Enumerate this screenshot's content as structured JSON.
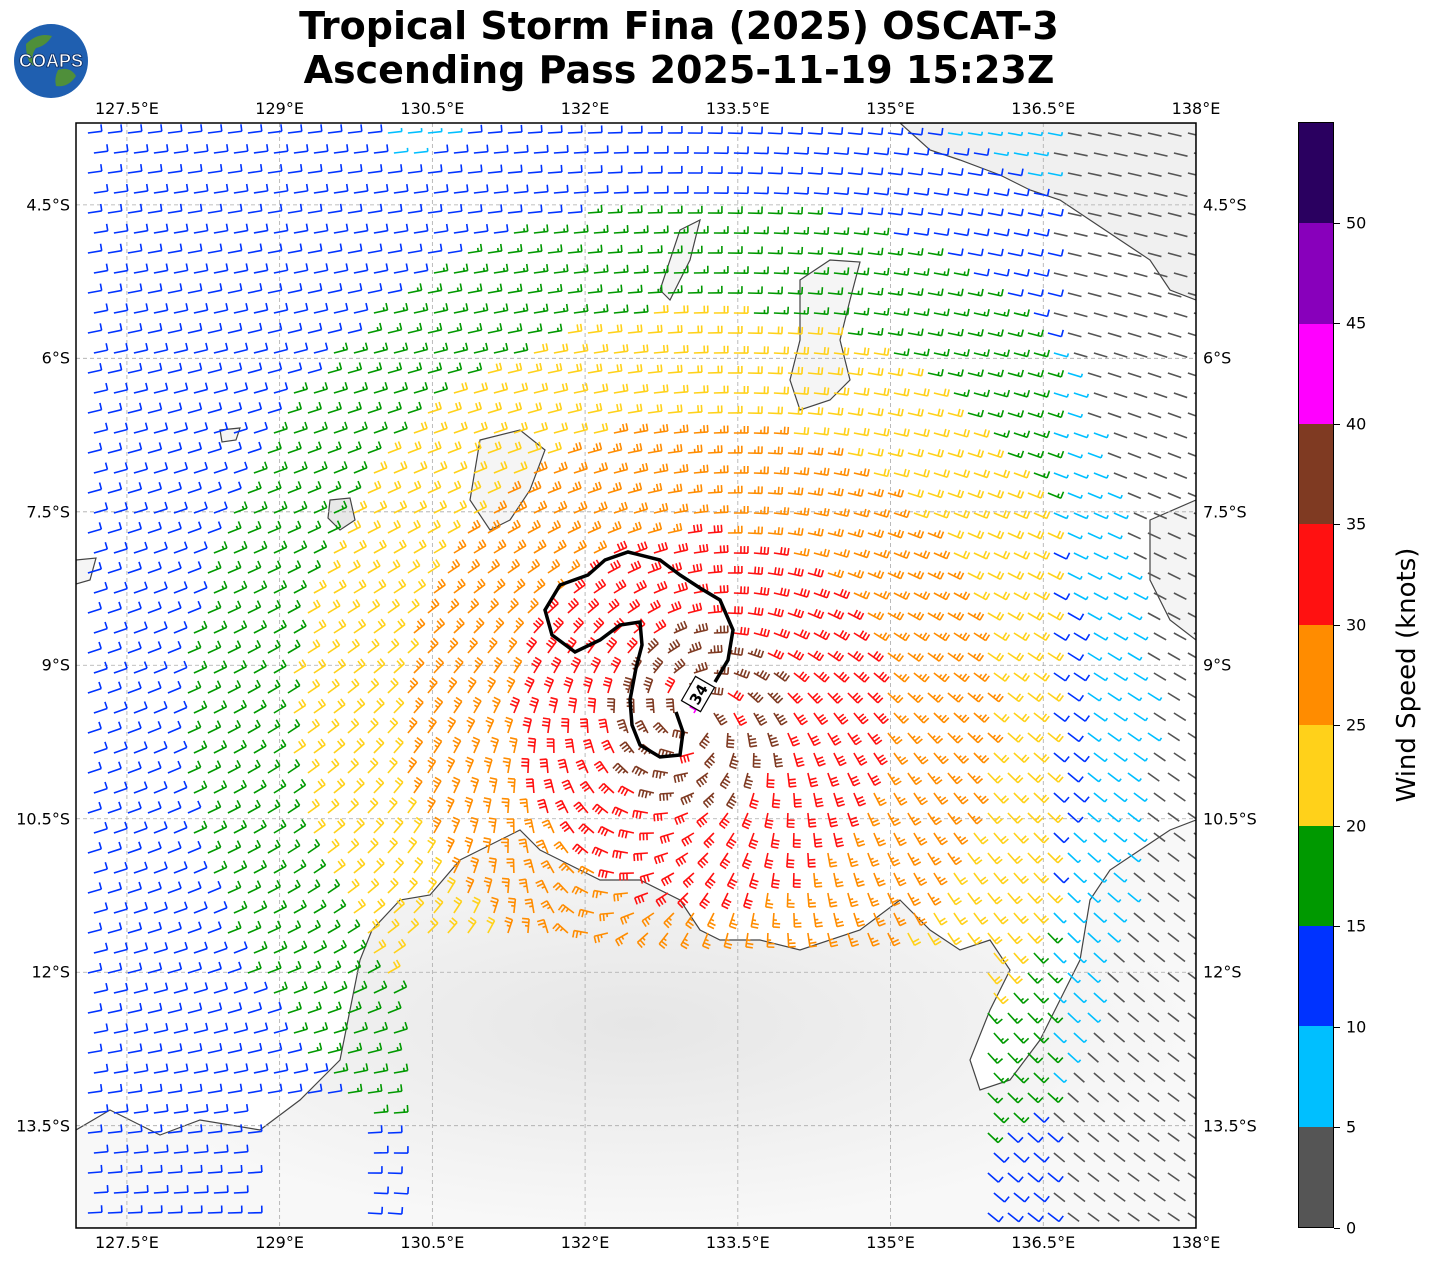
{
  "header": {
    "title_line1": "Tropical Storm Fina (2025) OSCAT-3",
    "title_line2": "Ascending Pass 2025-11-19 15:23Z"
  },
  "logo": {
    "text": "COAPS",
    "icon": "globe-icon"
  },
  "map": {
    "lon_range": [
      127.0,
      138.0
    ],
    "lat_range": [
      -14.5,
      -3.7
    ],
    "lon_ticks": [
      "127.5°E",
      "129°E",
      "130.5°E",
      "132°E",
      "133.5°E",
      "135°E",
      "136.5°E",
      "138°E"
    ],
    "lat_ticks": [
      "4.5°S",
      "6°S",
      "7.5°S",
      "9°S",
      "10.5°S",
      "12°S",
      "13.5°S"
    ],
    "gridlines": "dashed",
    "storm_center": {
      "lon": 133.1,
      "lat": -9.5
    },
    "contour_label": "34"
  },
  "colorbar": {
    "title": "Wind Speed (knots)",
    "tick_labels": [
      "0",
      "5",
      "10",
      "15",
      "20",
      "25",
      "30",
      "35",
      "40",
      "45",
      "50"
    ],
    "bins": [
      {
        "min": 0,
        "max": 5,
        "color": "#555555"
      },
      {
        "min": 5,
        "max": 10,
        "color": "#00bfff"
      },
      {
        "min": 10,
        "max": 15,
        "color": "#0033ff"
      },
      {
        "min": 15,
        "max": 20,
        "color": "#009900"
      },
      {
        "min": 20,
        "max": 25,
        "color": "#ffd11a"
      },
      {
        "min": 25,
        "max": 30,
        "color": "#ff8c00"
      },
      {
        "min": 30,
        "max": 35,
        "color": "#ff1111"
      },
      {
        "min": 35,
        "max": 40,
        "color": "#7f3a22"
      },
      {
        "min": 40,
        "max": 45,
        "color": "#ff00ff"
      },
      {
        "min": 45,
        "max": 50,
        "color": "#8800bb"
      },
      {
        "min": 50,
        "max": 55,
        "color": "#2a0060"
      }
    ]
  }
}
